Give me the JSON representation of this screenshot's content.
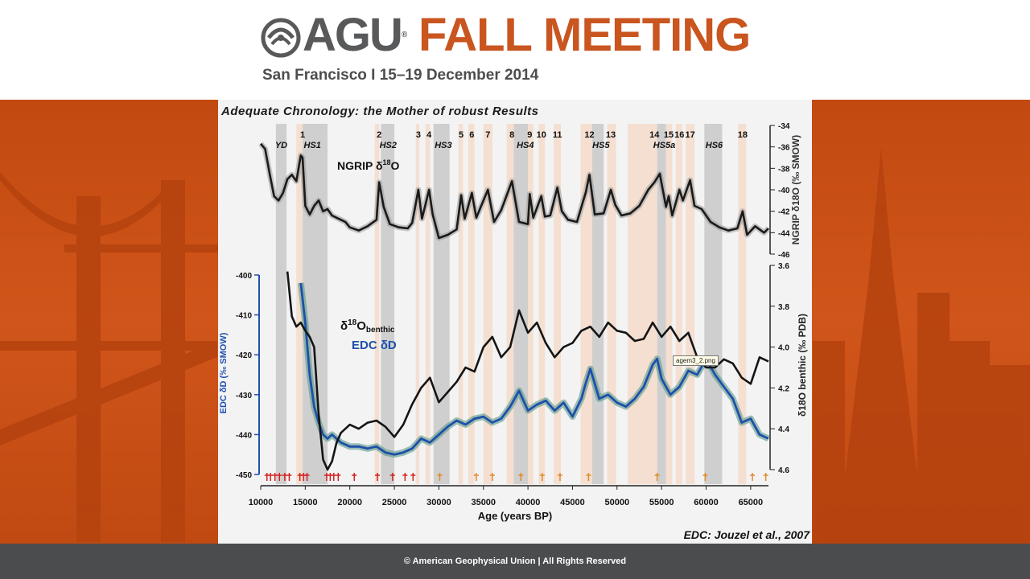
{
  "header": {
    "brand": "AGU",
    "event": "FALL MEETING",
    "subtitle": "San Francisco  I  15–19 December 2014",
    "colors": {
      "brand_gray": "#58595b",
      "accent_orange": "#c9551f"
    },
    "logo_icon": "agu-swirl-logo-icon"
  },
  "footer": {
    "text": "© American Geophysical Union | All Rights Reserved"
  },
  "slide": {
    "title": "Adequate Chronology: the Mother of robust Results",
    "citation": "EDC: Jouzel et al., 2007",
    "tooltip": "agem3_2.png"
  },
  "chart_data": {
    "type": "line",
    "xlabel": "Age (years BP)",
    "xlim": [
      10000,
      67000
    ],
    "xticks": [
      10000,
      15000,
      20000,
      25000,
      30000,
      35000,
      40000,
      45000,
      50000,
      55000,
      60000,
      65000
    ],
    "event_numbers": [
      {
        "label": "1",
        "x": 14700
      },
      {
        "label": "2",
        "x": 23300
      },
      {
        "label": "3",
        "x": 27700
      },
      {
        "label": "4",
        "x": 28900
      },
      {
        "label": "5",
        "x": 32500
      },
      {
        "label": "6",
        "x": 33700
      },
      {
        "label": "7",
        "x": 35500
      },
      {
        "label": "8",
        "x": 38200
      },
      {
        "label": "9",
        "x": 40200
      },
      {
        "label": "10",
        "x": 41500
      },
      {
        "label": "11",
        "x": 43300
      },
      {
        "label": "12",
        "x": 46900
      },
      {
        "label": "13",
        "x": 49300
      },
      {
        "label": "14",
        "x": 54200
      },
      {
        "label": "15",
        "x": 55800
      },
      {
        "label": "16",
        "x": 57000
      },
      {
        "label": "17",
        "x": 58200
      },
      {
        "label": "18",
        "x": 64100
      }
    ],
    "event_labels": [
      {
        "label": "YD",
        "x": 12300
      },
      {
        "label": "HS1",
        "x": 15800
      },
      {
        "label": "HS2",
        "x": 24300
      },
      {
        "label": "HS3",
        "x": 30500
      },
      {
        "label": "HS4",
        "x": 39700
      },
      {
        "label": "HS5",
        "x": 48200
      },
      {
        "label": "HS5a",
        "x": 55300
      },
      {
        "label": "HS6",
        "x": 60900
      }
    ],
    "panels": [
      {
        "name": "ngrip",
        "label_main": "NGRIP δ",
        "label_sup": "18",
        "label_end": "O",
        "ylabel": "NGRIP δ18O (‰ SMOW)",
        "ylim": [
          -46,
          -34
        ],
        "yticks": [
          -34,
          -36,
          -38,
          -40,
          -42,
          -44,
          -46
        ],
        "series": [
          {
            "color": "#1a1a1a",
            "x": [
              10000,
              10500,
              11000,
              11500,
              12000,
              12500,
              13000,
              13500,
              14000,
              14500,
              14700,
              15000,
              15500,
              16000,
              16500,
              17000,
              17500,
              18000,
              18500,
              19000,
              19500,
              20000,
              21000,
              22000,
              23000,
              23300,
              23800,
              24500,
              25500,
              26500,
              27000,
              27700,
              28100,
              28900,
              29300,
              30000,
              31000,
              32000,
              32500,
              32900,
              33700,
              34200,
              35500,
              36200,
              37000,
              38200,
              39000,
              40000,
              40200,
              40600,
              41500,
              41900,
              42500,
              43300,
              43800,
              44500,
              45500,
              46500,
              46900,
              47500,
              48500,
              49300,
              49800,
              50500,
              51500,
              52500,
              53500,
              54200,
              54800,
              55500,
              55800,
              56200,
              57000,
              57400,
              58200,
              58700,
              59500,
              60500,
              61500,
              62500,
              63500,
              64100,
              64600,
              65500,
              66500,
              67000
            ],
            "y": [
              -35.7,
              -36.2,
              -38.5,
              -40.6,
              -41.0,
              -40.3,
              -39.0,
              -38.6,
              -39.2,
              -36.8,
              -37.0,
              -41.5,
              -42.3,
              -41.5,
              -41.0,
              -42.0,
              -41.8,
              -42.4,
              -42.6,
              -42.8,
              -43.0,
              -43.5,
              -43.8,
              -43.4,
              -42.8,
              -39.3,
              -41.6,
              -43.2,
              -43.5,
              -43.6,
              -43.1,
              -40.0,
              -42.7,
              -40.0,
              -42.3,
              -44.5,
              -44.2,
              -43.7,
              -40.5,
              -42.7,
              -40.3,
              -42.6,
              -40.0,
              -43.0,
              -41.9,
              -39.2,
              -43.0,
              -43.2,
              -40.4,
              -42.6,
              -40.6,
              -42.5,
              -42.4,
              -39.8,
              -42.0,
              -42.8,
              -43.0,
              -40.2,
              -38.6,
              -42.3,
              -42.2,
              -40.0,
              -41.4,
              -42.4,
              -42.2,
              -41.5,
              -40.0,
              -39.3,
              -38.5,
              -41.6,
              -40.6,
              -42.4,
              -40.0,
              -41.0,
              -39.1,
              -41.5,
              -41.8,
              -43.0,
              -43.5,
              -43.8,
              -43.6,
              -42.0,
              -44.2,
              -43.4,
              -44.0,
              -43.6
            ]
          }
        ]
      },
      {
        "name": "benthic-edc",
        "label_main": "δ",
        "label_sup": "18",
        "label_end": "O",
        "label_sub": "benthic",
        "label2": "EDC δD",
        "ylabel_left": "EDC  δD (‰ SMOW)",
        "ylabel_right": "δ18O benthic (‰ PDB)",
        "ylim_left": [
          -450,
          -400
        ],
        "yticks_left": [
          -400,
          -410,
          -420,
          -430,
          -440,
          -450
        ],
        "ylim_right": [
          4.6,
          3.6
        ],
        "yticks_right": [
          3.6,
          3.8,
          4.0,
          4.2,
          4.4,
          4.6
        ],
        "series": [
          {
            "name": "EDC δD",
            "axis": "left",
            "color": "#1f4fa8",
            "x": [
              14500,
              15000,
              15500,
              16000,
              16500,
              17000,
              17500,
              18000,
              19000,
              20000,
              21000,
              22000,
              23000,
              24000,
              25000,
              26000,
              27000,
              28000,
              29000,
              30000,
              31000,
              32000,
              33000,
              34000,
              35000,
              36000,
              37000,
              38000,
              39000,
              40000,
              41000,
              42000,
              43000,
              44000,
              45000,
              46000,
              46500,
              47000,
              48000,
              49000,
              50000,
              51000,
              52000,
              53000,
              54000,
              54500,
              55000,
              56000,
              57000,
              58000,
              59000,
              60000,
              61000,
              62000,
              63000,
              64000,
              65000,
              66000,
              67000
            ],
            "y": [
              -402,
              -412,
              -425,
              -433,
              -437,
              -440,
              -441,
              -440,
              -442,
              -443,
              -443,
              -443.5,
              -443,
              -444.5,
              -445,
              -444.5,
              -443.5,
              -441,
              -442,
              -440,
              -438,
              -436.5,
              -437.5,
              -436,
              -435.5,
              -437,
              -436,
              -433,
              -429,
              -434,
              -432.5,
              -431.5,
              -434,
              -432,
              -435.5,
              -431,
              -427,
              -423.5,
              -431,
              -430,
              -432,
              -433,
              -431,
              -428,
              -422.5,
              -421,
              -426,
              -430,
              -428,
              -424,
              -425,
              -421,
              -425,
              -428,
              -431,
              -437,
              -436,
              -440,
              -441
            ]
          },
          {
            "name": "δ18O benthic",
            "axis": "right",
            "color": "#151515",
            "x": [
              13000,
              13500,
              14000,
              14500,
              15000,
              15500,
              16000,
              16500,
              17000,
              17500,
              18000,
              18500,
              19000,
              20000,
              21000,
              22000,
              23000,
              24000,
              25000,
              26000,
              27000,
              28000,
              29000,
              30000,
              31000,
              32000,
              33000,
              34000,
              35000,
              36000,
              37000,
              38000,
              39000,
              40000,
              41000,
              42000,
              43000,
              44000,
              45000,
              46000,
              47000,
              48000,
              49000,
              50000,
              51000,
              52000,
              53000,
              54000,
              55000,
              56000,
              57000,
              58000,
              59000,
              60000,
              61000,
              62000,
              63000,
              64000,
              65000,
              66000,
              67000
            ],
            "y": [
              3.63,
              3.85,
              3.9,
              3.88,
              3.92,
              3.95,
              4.0,
              4.33,
              4.55,
              4.6,
              4.56,
              4.47,
              4.42,
              4.38,
              4.4,
              4.37,
              4.36,
              4.39,
              4.44,
              4.38,
              4.28,
              4.2,
              4.15,
              4.27,
              4.22,
              4.17,
              4.1,
              4.12,
              4.0,
              3.95,
              4.05,
              4.0,
              3.82,
              3.93,
              3.88,
              3.98,
              4.05,
              4.0,
              3.98,
              3.92,
              3.9,
              3.95,
              3.88,
              3.92,
              3.93,
              3.97,
              3.96,
              3.88,
              3.95,
              3.9,
              3.97,
              3.93,
              4.05,
              4.1,
              4.1,
              4.06,
              4.08,
              4.15,
              4.18,
              4.05,
              4.07
            ]
          }
        ]
      }
    ],
    "shaded_bands": [
      {
        "x0": 11700,
        "x1": 12900,
        "kind": "cold"
      },
      {
        "x0": 14700,
        "x1": 17500,
        "kind": "cold"
      },
      {
        "x0": 23500,
        "x1": 25000,
        "kind": "cold"
      },
      {
        "x0": 29400,
        "x1": 31200,
        "kind": "cold"
      },
      {
        "x0": 38400,
        "x1": 40000,
        "kind": "cold"
      },
      {
        "x0": 47200,
        "x1": 48500,
        "kind": "cold"
      },
      {
        "x0": 54500,
        "x1": 55500,
        "kind": "cold"
      },
      {
        "x0": 59800,
        "x1": 61800,
        "kind": "cold"
      },
      {
        "x0": 14000,
        "x1": 14700,
        "kind": "warm"
      },
      {
        "x0": 22800,
        "x1": 23300,
        "kind": "warm"
      },
      {
        "x0": 27400,
        "x1": 27800,
        "kind": "warm"
      },
      {
        "x0": 28500,
        "x1": 29000,
        "kind": "warm"
      },
      {
        "x0": 32200,
        "x1": 32700,
        "kind": "warm"
      },
      {
        "x0": 33300,
        "x1": 34000,
        "kind": "warm"
      },
      {
        "x0": 35000,
        "x1": 36000,
        "kind": "warm"
      },
      {
        "x0": 37600,
        "x1": 38400,
        "kind": "warm"
      },
      {
        "x0": 40000,
        "x1": 40600,
        "kind": "warm"
      },
      {
        "x0": 41200,
        "x1": 41900,
        "kind": "warm"
      },
      {
        "x0": 42900,
        "x1": 43700,
        "kind": "warm"
      },
      {
        "x0": 45900,
        "x1": 47200,
        "kind": "warm"
      },
      {
        "x0": 48900,
        "x1": 49900,
        "kind": "warm"
      },
      {
        "x0": 51200,
        "x1": 54500,
        "kind": "warm"
      },
      {
        "x0": 55500,
        "x1": 56200,
        "kind": "warm"
      },
      {
        "x0": 56600,
        "x1": 57300,
        "kind": "warm"
      },
      {
        "x0": 57700,
        "x1": 58700,
        "kind": "warm"
      },
      {
        "x0": 63600,
        "x1": 64500,
        "kind": "warm"
      }
    ],
    "tie_points": [
      {
        "x": 10700,
        "color": "#d42020"
      },
      {
        "x": 11100,
        "color": "#d42020"
      },
      {
        "x": 11600,
        "color": "#d42020"
      },
      {
        "x": 12100,
        "color": "#d42020"
      },
      {
        "x": 12700,
        "color": "#d42020"
      },
      {
        "x": 13200,
        "color": "#d42020"
      },
      {
        "x": 14400,
        "color": "#d42020"
      },
      {
        "x": 14800,
        "color": "#d42020"
      },
      {
        "x": 15200,
        "color": "#d42020"
      },
      {
        "x": 17400,
        "color": "#d42020"
      },
      {
        "x": 17800,
        "color": "#d42020"
      },
      {
        "x": 18200,
        "color": "#d42020"
      },
      {
        "x": 18700,
        "color": "#d42020"
      },
      {
        "x": 20500,
        "color": "#d42020"
      },
      {
        "x": 23100,
        "color": "#d42020"
      },
      {
        "x": 24800,
        "color": "#d42020"
      },
      {
        "x": 26200,
        "color": "#d42020"
      },
      {
        "x": 27100,
        "color": "#d42020"
      },
      {
        "x": 30100,
        "color": "#e08a2a"
      },
      {
        "x": 34200,
        "color": "#e08a2a"
      },
      {
        "x": 36000,
        "color": "#e08a2a"
      },
      {
        "x": 39200,
        "color": "#e08a2a"
      },
      {
        "x": 41600,
        "color": "#e08a2a"
      },
      {
        "x": 43600,
        "color": "#e08a2a"
      },
      {
        "x": 46800,
        "color": "#e08a2a"
      },
      {
        "x": 54500,
        "color": "#e08a2a"
      },
      {
        "x": 59900,
        "color": "#e08a2a"
      },
      {
        "x": 65200,
        "color": "#e08a2a"
      },
      {
        "x": 66700,
        "color": "#e08a2a"
      }
    ]
  }
}
